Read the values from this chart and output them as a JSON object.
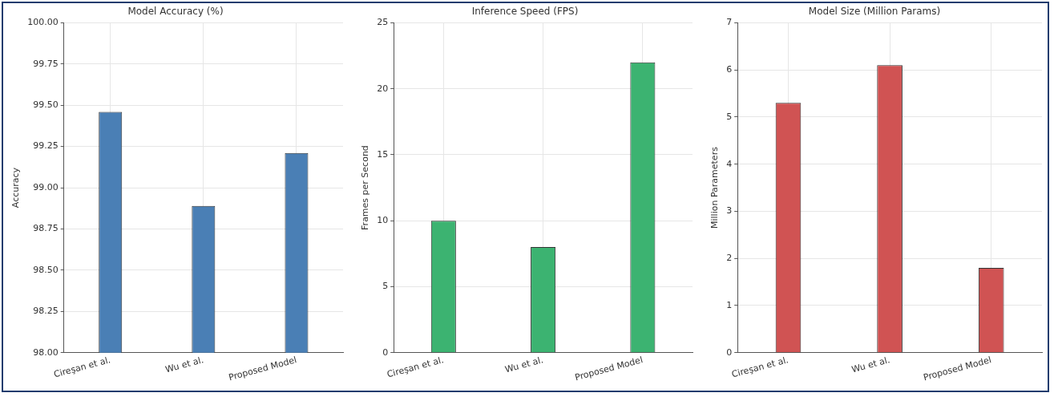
{
  "chart_data": [
    {
      "type": "bar",
      "title": "Model Accuracy (%)",
      "ylabel": "Accuracy",
      "categories": [
        "Cireşan et al.",
        "Wu et al.",
        "Proposed Model"
      ],
      "values": [
        99.46,
        98.89,
        99.21
      ],
      "color": "#4a7fb5",
      "ylim": [
        98.0,
        100.0
      ],
      "yticks": [
        {
          "value": 98.0,
          "label": "98.00"
        },
        {
          "value": 98.25,
          "label": "98.25"
        },
        {
          "value": 98.5,
          "label": "98.50"
        },
        {
          "value": 98.75,
          "label": "98.75"
        },
        {
          "value": 99.0,
          "label": "99.00"
        },
        {
          "value": 99.25,
          "label": "99.25"
        },
        {
          "value": 99.5,
          "label": "99.50"
        },
        {
          "value": 99.75,
          "label": "99.75"
        },
        {
          "value": 100.0,
          "label": "100.00"
        }
      ],
      "grid": true
    },
    {
      "type": "bar",
      "title": "Inference Speed (FPS)",
      "ylabel": "Frames per Second",
      "categories": [
        "Cireşan et al.",
        "Wu et al.",
        "Proposed Model"
      ],
      "values": [
        10,
        8,
        22
      ],
      "color": "#3cb371",
      "ylim": [
        0,
        25
      ],
      "yticks": [
        0,
        5,
        10,
        15,
        20,
        25
      ],
      "grid": true
    },
    {
      "type": "bar",
      "title": "Model Size (Million Params)",
      "ylabel": "Million Parameters",
      "categories": [
        "Cireşan et al.",
        "Wu et al.",
        "Proposed Model"
      ],
      "values": [
        5.3,
        6.1,
        1.8
      ],
      "color": "#d05353",
      "ylim": [
        0,
        7
      ],
      "yticks": [
        0,
        1,
        2,
        3,
        4,
        5,
        6,
        7
      ],
      "grid": true
    }
  ]
}
